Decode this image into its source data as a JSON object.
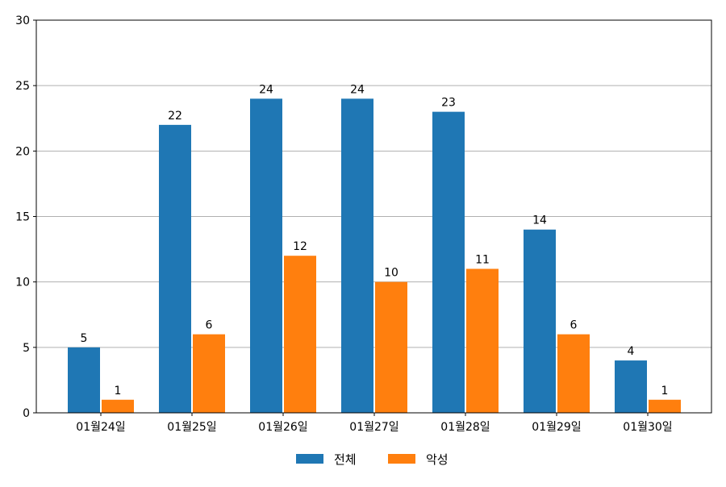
{
  "chart_data": {
    "type": "bar",
    "categories": [
      "01월24일",
      "01월25일",
      "01월26일",
      "01월27일",
      "01월28일",
      "01월29일",
      "01월30일"
    ],
    "series": [
      {
        "name": "전체",
        "color": "#1f77b4",
        "values": [
          5,
          22,
          24,
          24,
          23,
          14,
          4
        ]
      },
      {
        "name": "악성",
        "color": "#ff7f0e",
        "values": [
          1,
          6,
          12,
          10,
          11,
          6,
          1
        ]
      }
    ],
    "title": "",
    "xlabel": "",
    "ylabel": "",
    "ylim": [
      0,
      30
    ],
    "yticks": [
      0,
      5,
      10,
      15,
      20,
      25,
      30
    ],
    "grid": "horizontal",
    "legend_position": "bottom-center",
    "data_labels": true
  }
}
